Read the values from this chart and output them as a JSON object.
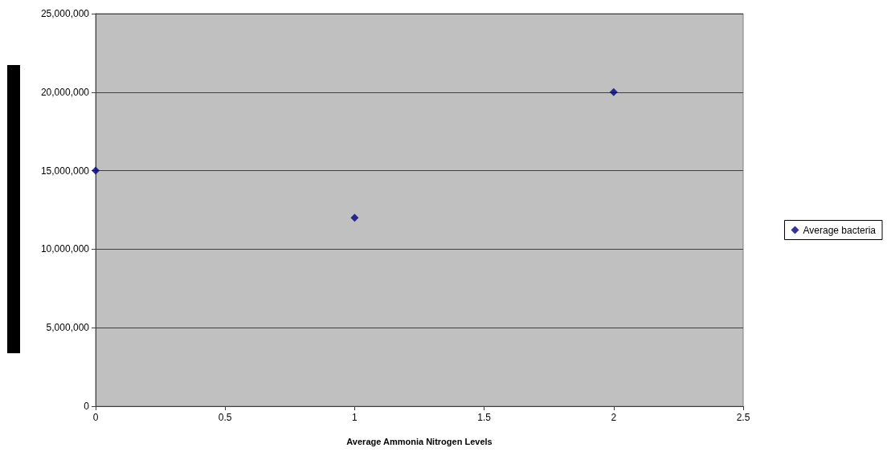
{
  "chart_data": {
    "type": "scatter",
    "xlabel": "Average Ammonia Nitrogen Levels",
    "x": [
      0,
      1,
      2
    ],
    "series": [
      {
        "name": "Average bacteria",
        "color": "#000080",
        "values": [
          15000000,
          12000000,
          20000000
        ]
      }
    ],
    "xlim": [
      0,
      2.5
    ],
    "xticks": [
      0,
      0.5,
      1,
      1.5,
      2,
      2.5
    ],
    "ylim": [
      0,
      25000000
    ],
    "yticks": [
      0,
      {
        "value": 5000000,
        "label": "5,000,000"
      },
      {
        "value": 10000000,
        "label": "10,000,000"
      },
      {
        "value": 15000000,
        "label": "15,000,000"
      },
      {
        "value": 20000000,
        "label": "20,000,000"
      },
      {
        "value": 25000000,
        "label": "25,000,000"
      }
    ],
    "grid": "y",
    "legend": "right",
    "marker": "diamond"
  }
}
